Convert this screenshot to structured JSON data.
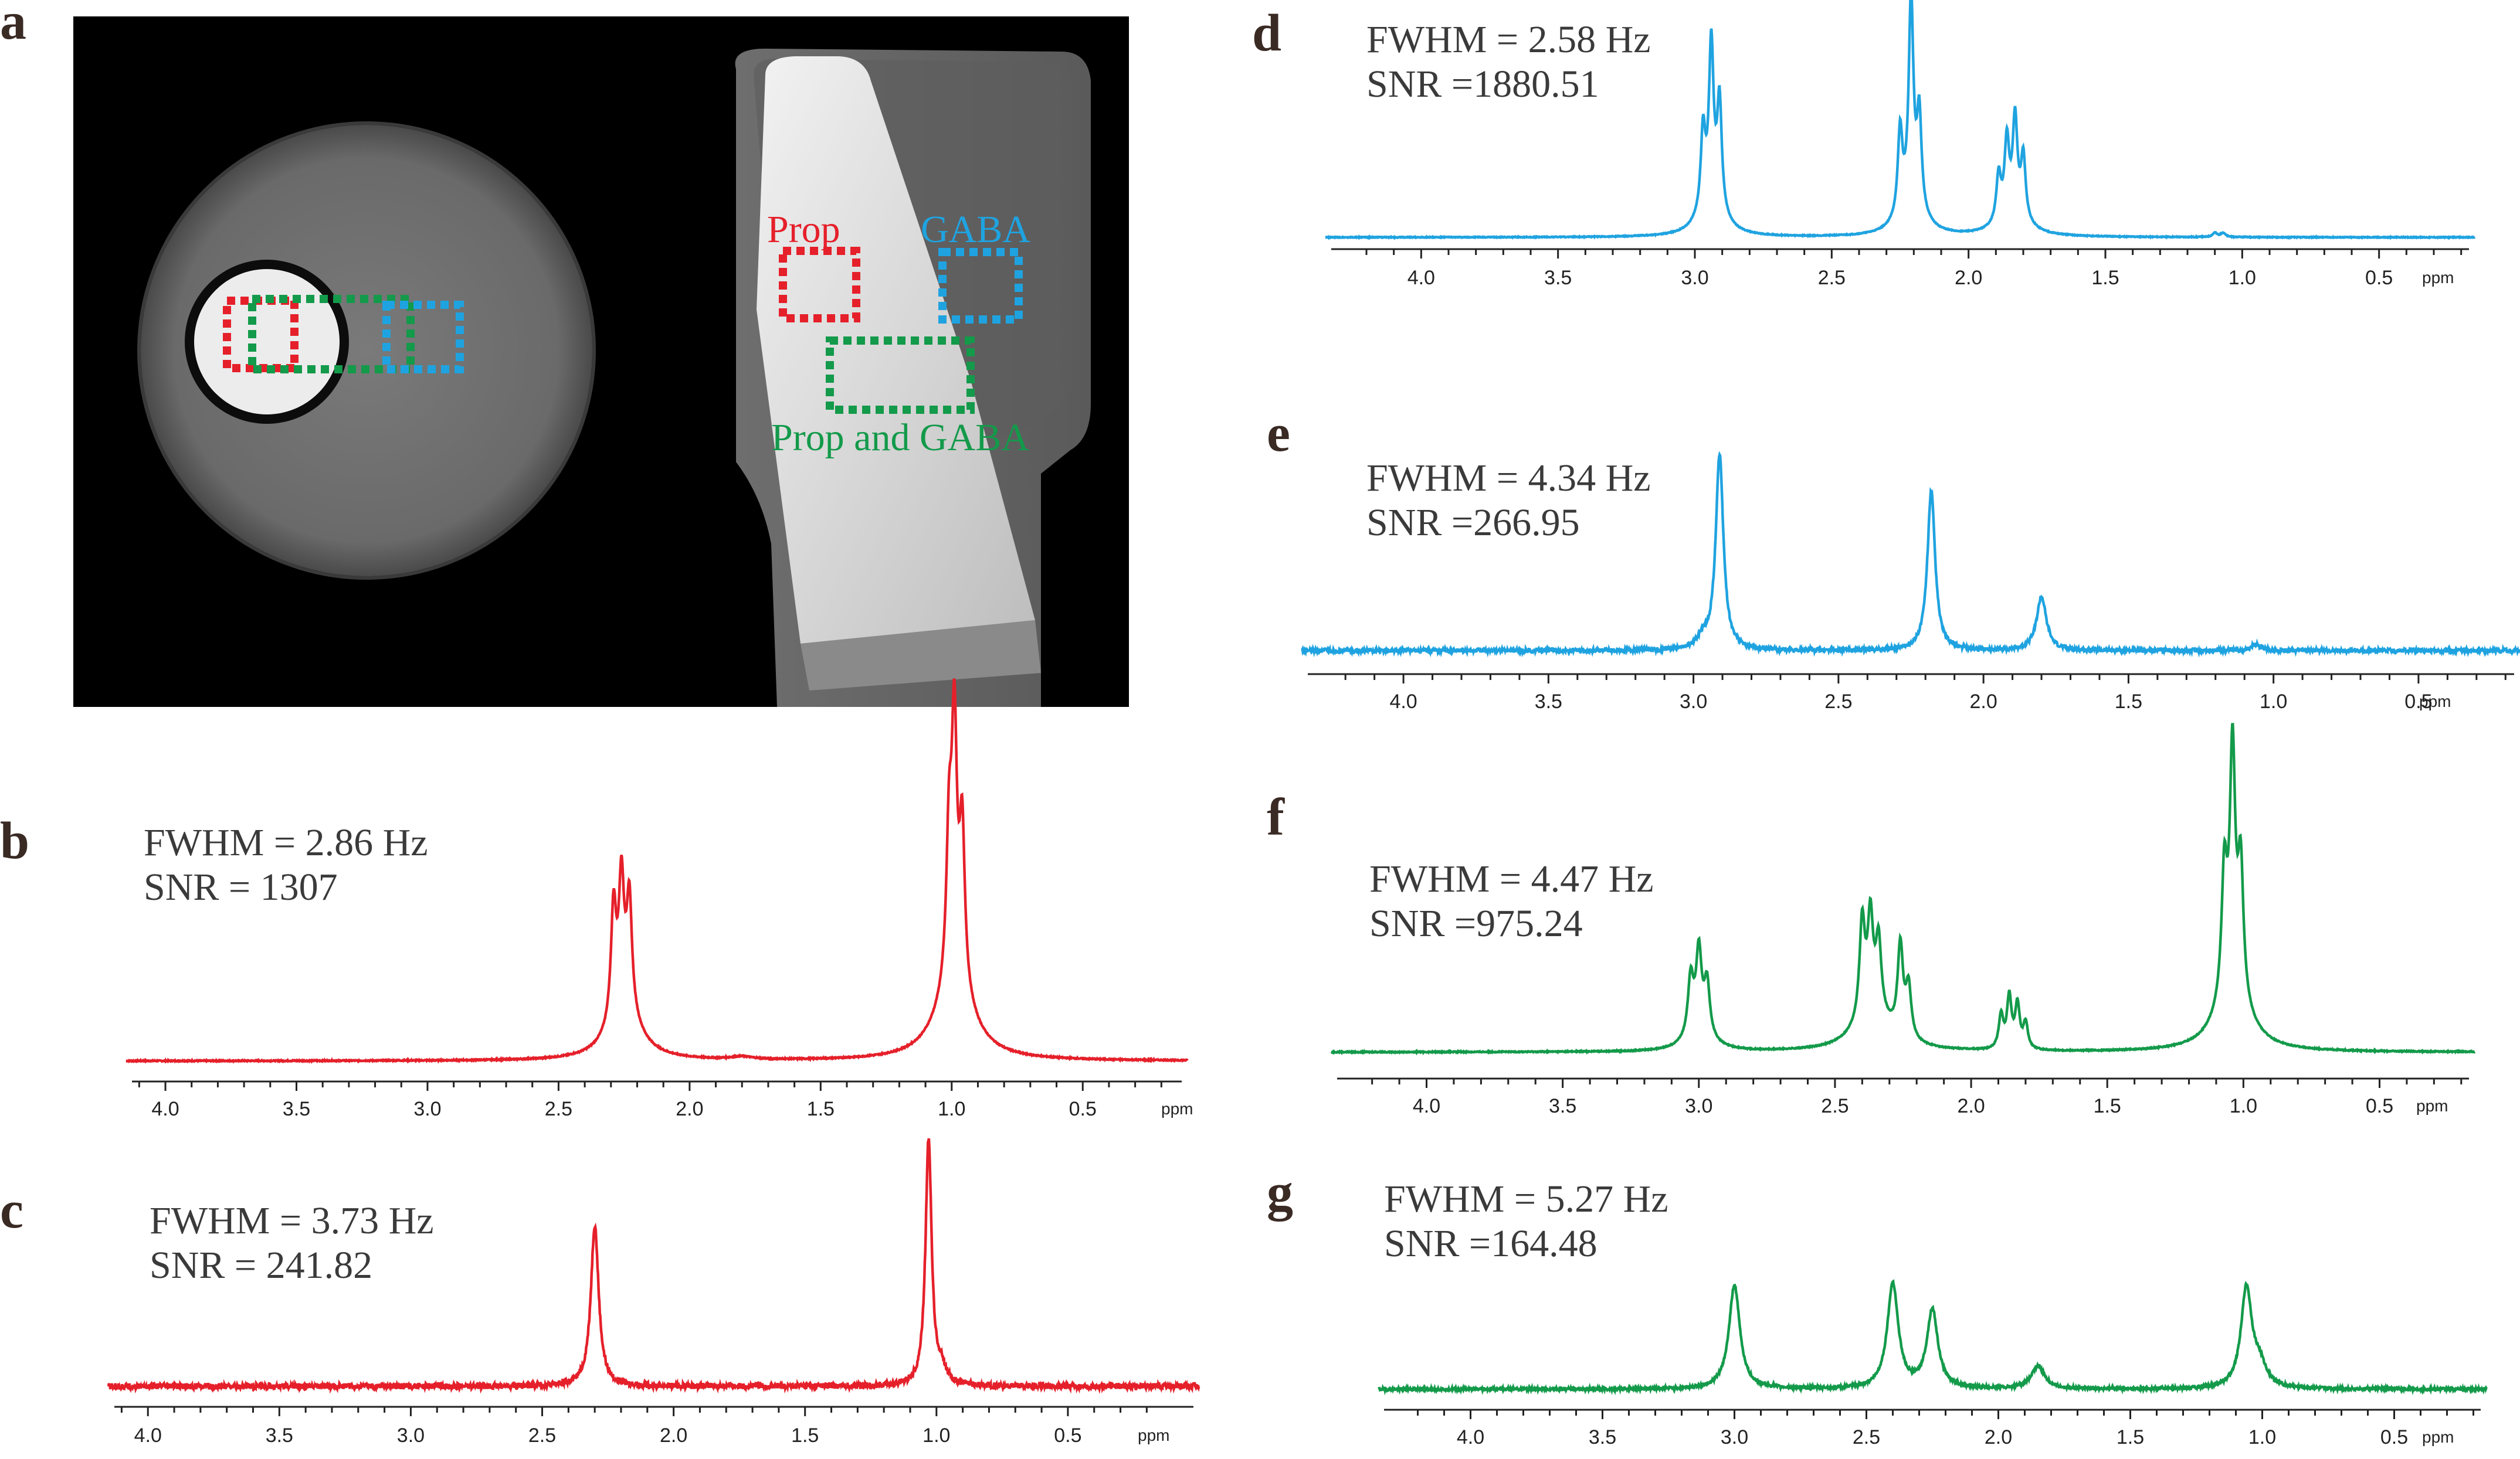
{
  "figure": {
    "panels": [
      "a",
      "b",
      "c",
      "d",
      "e",
      "f",
      "g"
    ]
  },
  "mri_image": {
    "labels": {
      "prop": "Prop",
      "gaba": "GABA",
      "prop_gaba": "Prop and GABA"
    },
    "colors": {
      "prop": "#e5202a",
      "gaba": "#1fa3e0",
      "prop_gaba": "#139a4a"
    }
  },
  "spectra": [
    {
      "id": "b",
      "fwhm_text": "FWHM = 2.86 Hz",
      "snr_text": "SNR = 1307",
      "color": "#e5202a"
    },
    {
      "id": "c",
      "fwhm_text": "FWHM = 3.73 Hz",
      "snr_text": "SNR = 241.82",
      "color": "#e5202a"
    },
    {
      "id": "d",
      "fwhm_text": "FWHM = 2.58 Hz",
      "snr_text": "SNR =1880.51",
      "color": "#1fa3e0"
    },
    {
      "id": "e",
      "fwhm_text": "FWHM = 4.34 Hz",
      "snr_text": "SNR =266.95",
      "color": "#1fa3e0"
    },
    {
      "id": "f",
      "fwhm_text": "FWHM = 4.47 Hz",
      "snr_text": "SNR =975.24",
      "color": "#139a4a"
    },
    {
      "id": "g",
      "fwhm_text": "FWHM = 5.27 Hz",
      "snr_text": "SNR =164.48",
      "color": "#139a4a"
    }
  ],
  "chart_data": [
    {
      "type": "line",
      "panel": "b",
      "title": "",
      "xlabel": "ppm",
      "ylabel": "",
      "xlim": [
        4.15,
        0.1
      ],
      "axis_reversed": true,
      "tick_labels": [
        "4.0",
        "3.5",
        "3.0",
        "2.5",
        "2.0",
        "1.5",
        "1.0",
        "0.5"
      ],
      "tick_values": [
        4.0,
        3.5,
        3.0,
        2.5,
        2.0,
        1.5,
        1.0,
        0.5
      ],
      "baseline": "lorentzian-tail",
      "noise": 0.002,
      "peaks": [
        {
          "ppm": 2.29,
          "height": 0.42,
          "width": 0.012
        },
        {
          "ppm": 2.26,
          "height": 0.47,
          "width": 0.012
        },
        {
          "ppm": 2.23,
          "height": 0.42,
          "width": 0.012
        },
        {
          "ppm": 2.25,
          "height": 0.18,
          "width": 0.07
        },
        {
          "ppm": 1.01,
          "height": 0.52,
          "width": 0.012
        },
        {
          "ppm": 0.99,
          "height": 0.92,
          "width": 0.012
        },
        {
          "ppm": 0.96,
          "height": 0.58,
          "width": 0.012
        },
        {
          "ppm": 0.99,
          "height": 0.28,
          "width": 0.08
        },
        {
          "ppm": 1.8,
          "height": 0.01,
          "width": 0.05
        }
      ]
    },
    {
      "type": "line",
      "panel": "c",
      "title": "",
      "xlabel": "ppm",
      "ylabel": "",
      "xlim": [
        4.15,
        0.0
      ],
      "axis_reversed": true,
      "tick_labels": [
        "4.0",
        "3.5",
        "3.0",
        "2.5",
        "2.0",
        "1.5",
        "1.0",
        "0.5"
      ],
      "tick_values": [
        4.0,
        3.5,
        3.0,
        2.5,
        2.0,
        1.5,
        1.0,
        0.5
      ],
      "baseline": "flat",
      "noise": 0.012,
      "peaks": [
        {
          "ppm": 2.3,
          "height": 0.64,
          "width": 0.018
        },
        {
          "ppm": 1.03,
          "height": 0.98,
          "width": 0.014
        },
        {
          "ppm": 0.98,
          "height": 0.06,
          "width": 0.02
        }
      ]
    },
    {
      "type": "line",
      "panel": "d",
      "title": "",
      "xlabel": "ppm",
      "ylabel": "",
      "xlim": [
        4.35,
        0.15
      ],
      "axis_reversed": true,
      "tick_labels": [
        "4.0",
        "3.5",
        "3.0",
        "2.5",
        "2.0",
        "1.5",
        "1.0",
        "0.5"
      ],
      "tick_values": [
        4.0,
        3.5,
        3.0,
        2.5,
        2.0,
        1.5,
        1.0,
        0.5
      ],
      "baseline": "lorentzian-tail",
      "noise": 0.002,
      "peaks": [
        {
          "ppm": 2.97,
          "height": 0.38,
          "width": 0.01
        },
        {
          "ppm": 2.94,
          "height": 0.75,
          "width": 0.01
        },
        {
          "ppm": 2.91,
          "height": 0.52,
          "width": 0.01
        },
        {
          "ppm": 2.94,
          "height": 0.15,
          "width": 0.05
        },
        {
          "ppm": 2.25,
          "height": 0.4,
          "width": 0.01
        },
        {
          "ppm": 2.21,
          "height": 0.97,
          "width": 0.01
        },
        {
          "ppm": 2.18,
          "height": 0.45,
          "width": 0.01
        },
        {
          "ppm": 2.21,
          "height": 0.15,
          "width": 0.05
        },
        {
          "ppm": 1.89,
          "height": 0.22,
          "width": 0.01
        },
        {
          "ppm": 1.86,
          "height": 0.35,
          "width": 0.01
        },
        {
          "ppm": 1.83,
          "height": 0.45,
          "width": 0.01
        },
        {
          "ppm": 1.8,
          "height": 0.3,
          "width": 0.01
        },
        {
          "ppm": 1.84,
          "height": 0.1,
          "width": 0.06
        },
        {
          "ppm": 1.1,
          "height": 0.02,
          "width": 0.01
        },
        {
          "ppm": 1.07,
          "height": 0.02,
          "width": 0.01
        }
      ]
    },
    {
      "type": "line",
      "panel": "e",
      "title": "",
      "xlabel": "ppm",
      "ylabel": "",
      "xlim": [
        4.35,
        0.15
      ],
      "axis_reversed": true,
      "tick_labels": [
        "4.0",
        "3.5",
        "3.0",
        "2.5",
        "2.0",
        "1.5",
        "1.0",
        "0.5"
      ],
      "tick_values": [
        4.0,
        3.5,
        3.0,
        2.5,
        2.0,
        1.5,
        1.0,
        0.5
      ],
      "baseline": "flat",
      "noise": 0.01,
      "peaks": [
        {
          "ppm": 2.91,
          "height": 0.98,
          "width": 0.016
        },
        {
          "ppm": 2.97,
          "height": 0.05,
          "width": 0.02
        },
        {
          "ppm": 2.18,
          "height": 0.8,
          "width": 0.016
        },
        {
          "ppm": 1.8,
          "height": 0.27,
          "width": 0.02
        },
        {
          "ppm": 1.06,
          "height": 0.03,
          "width": 0.02
        }
      ]
    },
    {
      "type": "line",
      "panel": "f",
      "title": "",
      "xlabel": "ppm",
      "ylabel": "",
      "xlim": [
        4.35,
        0.15
      ],
      "axis_reversed": true,
      "tick_labels": [
        "4.0",
        "3.5",
        "3.0",
        "2.5",
        "2.0",
        "1.5",
        "1.0",
        "0.5"
      ],
      "tick_values": [
        4.0,
        3.5,
        3.0,
        2.5,
        2.0,
        1.5,
        1.0,
        0.5
      ],
      "baseline": "lorentzian-tail",
      "noise": 0.002,
      "peaks": [
        {
          "ppm": 3.03,
          "height": 0.22,
          "width": 0.012
        },
        {
          "ppm": 3.0,
          "height": 0.3,
          "width": 0.012
        },
        {
          "ppm": 2.97,
          "height": 0.2,
          "width": 0.012
        },
        {
          "ppm": 3.0,
          "height": 0.08,
          "width": 0.05
        },
        {
          "ppm": 2.4,
          "height": 0.38,
          "width": 0.012
        },
        {
          "ppm": 2.37,
          "height": 0.36,
          "width": 0.012
        },
        {
          "ppm": 2.34,
          "height": 0.28,
          "width": 0.012
        },
        {
          "ppm": 2.26,
          "height": 0.35,
          "width": 0.012
        },
        {
          "ppm": 2.23,
          "height": 0.2,
          "width": 0.012
        },
        {
          "ppm": 2.36,
          "height": 0.14,
          "width": 0.08
        },
        {
          "ppm": 1.89,
          "height": 0.13,
          "width": 0.01
        },
        {
          "ppm": 1.86,
          "height": 0.2,
          "width": 0.01
        },
        {
          "ppm": 1.83,
          "height": 0.17,
          "width": 0.01
        },
        {
          "ppm": 1.8,
          "height": 0.1,
          "width": 0.01
        },
        {
          "ppm": 1.07,
          "height": 0.48,
          "width": 0.012
        },
        {
          "ppm": 1.04,
          "height": 0.92,
          "width": 0.012
        },
        {
          "ppm": 1.01,
          "height": 0.5,
          "width": 0.012
        },
        {
          "ppm": 1.04,
          "height": 0.22,
          "width": 0.07
        }
      ]
    },
    {
      "type": "line",
      "panel": "g",
      "title": "",
      "xlabel": "ppm",
      "ylabel": "",
      "xlim": [
        4.35,
        0.15
      ],
      "axis_reversed": true,
      "tick_labels": [
        "4.0",
        "3.5",
        "3.0",
        "2.5",
        "2.0",
        "1.5",
        "1.0",
        "0.5"
      ],
      "tick_values": [
        4.0,
        3.5,
        3.0,
        2.5,
        2.0,
        1.5,
        1.0,
        0.5
      ],
      "baseline": "flat",
      "noise": 0.01,
      "peaks": [
        {
          "ppm": 3.0,
          "height": 0.77,
          "width": 0.025
        },
        {
          "ppm": 2.4,
          "height": 0.78,
          "width": 0.025
        },
        {
          "ppm": 2.25,
          "height": 0.58,
          "width": 0.025
        },
        {
          "ppm": 1.85,
          "height": 0.17,
          "width": 0.03
        },
        {
          "ppm": 1.06,
          "height": 0.74,
          "width": 0.025
        },
        {
          "ppm": 1.01,
          "height": 0.15,
          "width": 0.03
        }
      ]
    }
  ]
}
